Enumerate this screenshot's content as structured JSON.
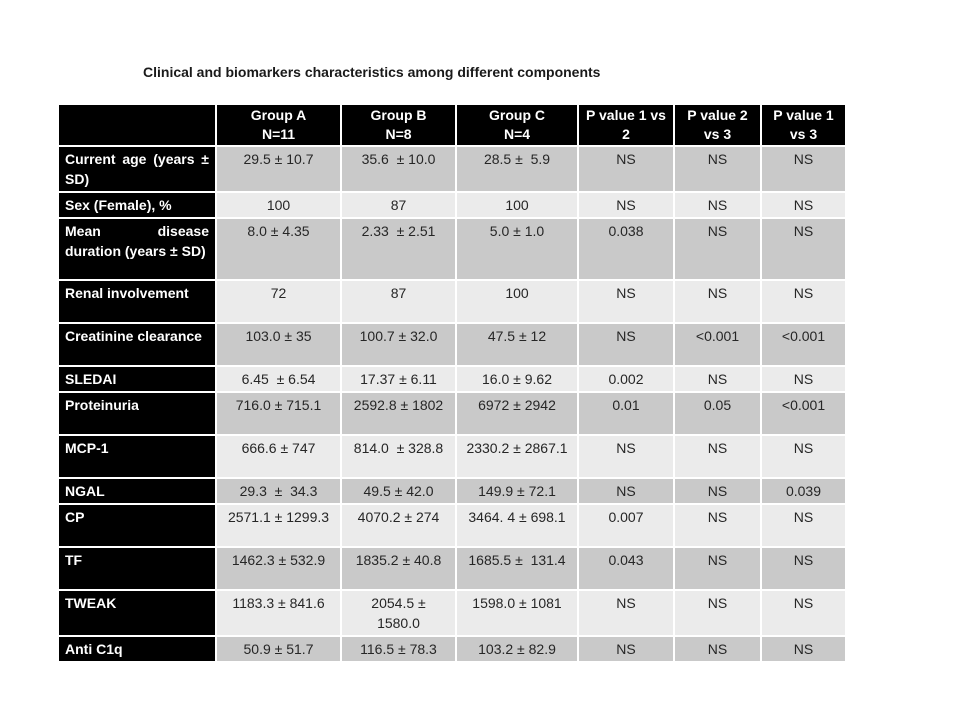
{
  "title": "Clinical and biomarkers characteristics among different components",
  "colors": {
    "header_bg": "#000000",
    "header_text": "#ffffff",
    "row_dark": "#c9c9c9",
    "row_light": "#ebebeb",
    "cell_border": "#ffffff",
    "body_text": "#262626"
  },
  "table": {
    "columns": [
      {
        "line1": "",
        "line2": ""
      },
      {
        "line1": "Group A",
        "line2": "N=11"
      },
      {
        "line1": "Group B",
        "line2": "N=8"
      },
      {
        "line1": "Group C",
        "line2": "N=4"
      },
      {
        "line1": "P value 1 vs",
        "line2": "2"
      },
      {
        "line1": "P value 2",
        "line2": "vs 3"
      },
      {
        "line1": "P value 1",
        "line2": "vs 3"
      }
    ],
    "rows": [
      {
        "label": "Current age (years ± SD)",
        "values": [
          "29.5 ± 10.7",
          "35.6  ± 10.0",
          "28.5 ±  5.9",
          "NS",
          "NS",
          "NS"
        ]
      },
      {
        "label": "Sex (Female), %",
        "values": [
          "100",
          "87",
          "100",
          "NS",
          "NS",
          "NS"
        ]
      },
      {
        "label": "Mean disease duration (years ± SD)",
        "values": [
          "8.0 ± 4.35",
          "2.33  ± 2.51",
          "5.0 ± 1.0",
          "0.038",
          "NS",
          "NS"
        ]
      },
      {
        "label": "Renal involvement",
        "values": [
          "72",
          "87",
          "100",
          "NS",
          "NS",
          "NS"
        ]
      },
      {
        "label": "Creatinine clearance",
        "values": [
          "103.0 ± 35",
          "100.7 ± 32.0",
          "47.5 ± 12",
          "NS",
          "<0.001",
          "<0.001"
        ]
      },
      {
        "label": "SLEDAI",
        "values": [
          "6.45  ± 6.54",
          "17.37 ± 6.11",
          "16.0 ± 9.62",
          "0.002",
          "NS",
          "NS"
        ]
      },
      {
        "label": "Proteinuria",
        "values": [
          "716.0 ± 715.1",
          "2592.8 ± 1802",
          "6972 ± 2942",
          "0.01",
          "0.05",
          "<0.001"
        ]
      },
      {
        "label": "MCP-1",
        "values": [
          "666.6 ± 747",
          "814.0  ± 328.8",
          "2330.2 ± 2867.1",
          "NS",
          "NS",
          "NS"
        ]
      },
      {
        "label": "NGAL",
        "values": [
          "29.3  ±  34.3",
          "49.5 ± 42.0",
          "149.9 ± 72.1",
          "NS",
          "NS",
          "0.039"
        ]
      },
      {
        "label": "CP",
        "values": [
          "2571.1 ± 1299.3",
          "4070.2 ± 274",
          "3464. 4 ± 698.1",
          "0.007",
          "NS",
          "NS"
        ]
      },
      {
        "label": "TF",
        "values": [
          "1462.3 ± 532.9",
          "1835.2 ± 40.8",
          "1685.5 ±  131.4",
          "0.043",
          "NS",
          "NS"
        ]
      },
      {
        "label": "TWEAK",
        "values": [
          "1183.3 ± 841.6",
          "2054.5 ±\n1580.0",
          "1598.0 ± 1081",
          "NS",
          "NS",
          "NS"
        ]
      },
      {
        "label": "Anti C1q",
        "values": [
          "50.9 ± 51.7",
          "116.5 ± 78.3",
          "103.2 ± 82.9",
          "NS",
          "NS",
          "NS"
        ]
      }
    ]
  }
}
